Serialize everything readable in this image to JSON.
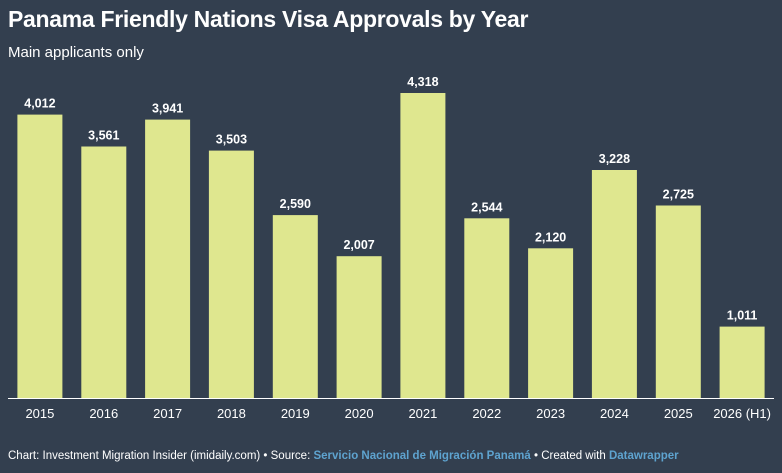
{
  "header": {
    "title": "Panama Friendly Nations Visa Approvals by Year",
    "subtitle": "Main applicants only"
  },
  "footer": {
    "chart_prefix": "Chart: Investment Migration Insider (imidaily.com) • Source: ",
    "source_link": "Servicio Nacional de Migración Panamá",
    "created_prefix": " • Created with ",
    "created_link": "Datawrapper"
  },
  "colors": {
    "background": "#333f4f",
    "bar": "#dfe78f",
    "text": "#ffffff",
    "link": "#5ea3cf",
    "baseline": "#ffffff"
  },
  "chart_data": {
    "type": "bar",
    "title": "Panama Friendly Nations Visa Approvals by Year",
    "subtitle": "Main applicants only",
    "categories": [
      "2015",
      "2016",
      "2017",
      "2018",
      "2019",
      "2020",
      "2021",
      "2022",
      "2023",
      "2024",
      "2025",
      "2026 (H1)"
    ],
    "values": [
      4012,
      3561,
      3941,
      3503,
      2590,
      2007,
      4318,
      2544,
      2120,
      3228,
      2725,
      1011
    ],
    "value_labels": [
      "4,012",
      "3,561",
      "3,941",
      "3,503",
      "2,590",
      "2,007",
      "4,318",
      "2,544",
      "2,120",
      "3,228",
      "2,725",
      "1,011"
    ],
    "xlabel": "",
    "ylabel": "",
    "ylim": [
      0,
      4318
    ],
    "grid": false,
    "legend": "none"
  }
}
